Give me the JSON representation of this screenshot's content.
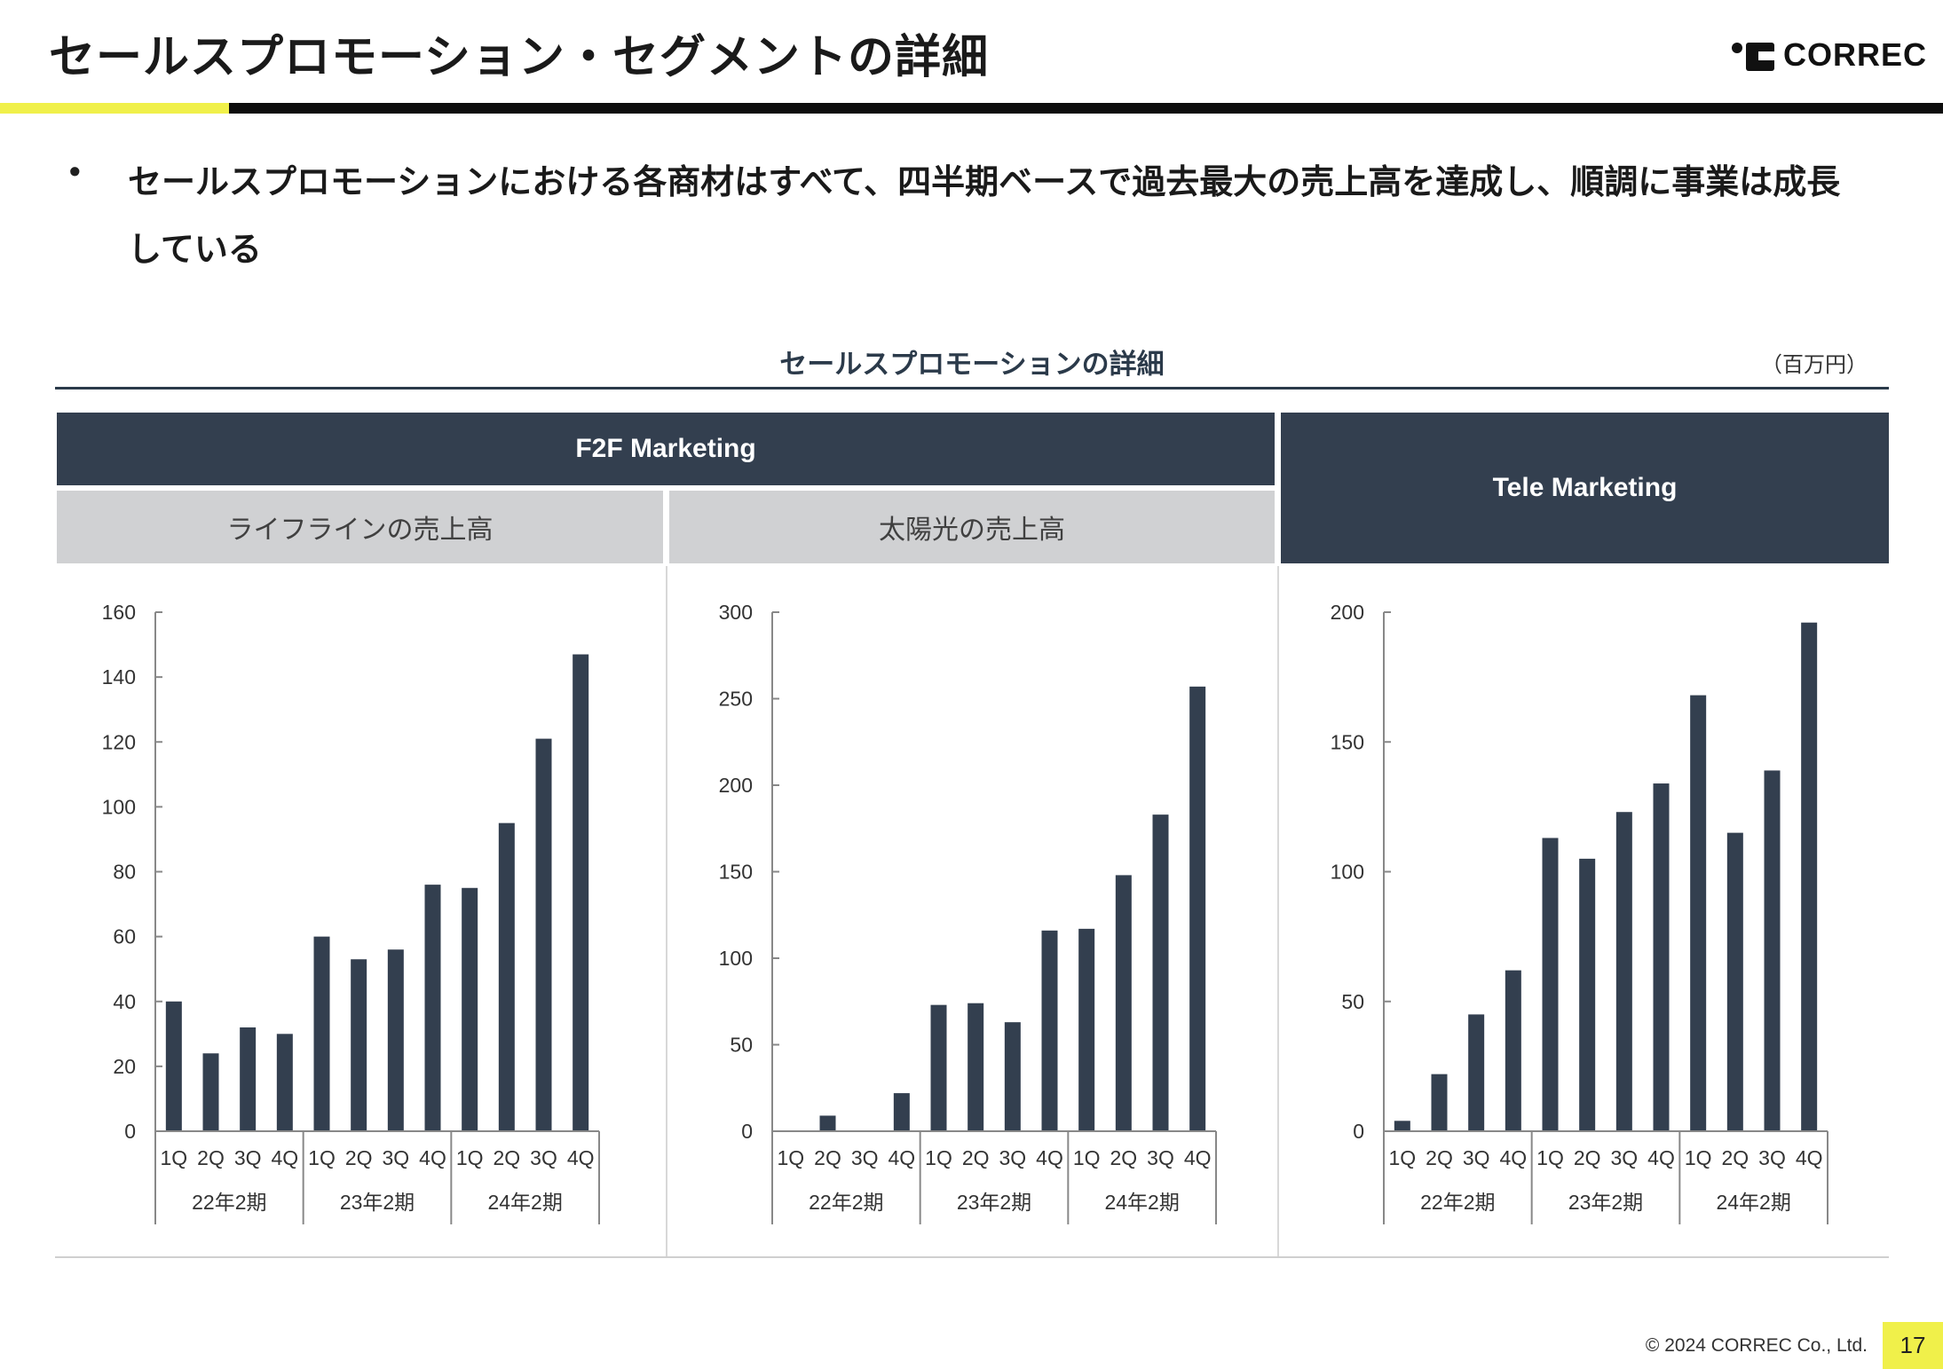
{
  "header": {
    "title": "セールスプロモーション・セグメントの詳細",
    "logo_text": "CORREC"
  },
  "bullet": {
    "marker": "•",
    "text": "セールスプロモーションにおける各商材はすべて、四半期ベースで過去最大の売上高を達成し、順調に事業は成長している"
  },
  "section": {
    "title": "セールスプロモーションの詳細",
    "unit": "（百万円）",
    "f2f_label": "F2F Marketing",
    "tele_label": "Tele Marketing",
    "lifeline_label": "ライフラインの売上高",
    "solar_label": "太陽光の売上高"
  },
  "colors": {
    "bar": "#333f4f",
    "header_dark": "#333f4f",
    "header_light": "#d0d1d3",
    "accent_yellow": "#f0f04a"
  },
  "chart_data": [
    {
      "type": "bar",
      "title": "ライフラインの売上高",
      "quarters": [
        "1Q",
        "2Q",
        "3Q",
        "4Q",
        "1Q",
        "2Q",
        "3Q",
        "4Q",
        "1Q",
        "2Q",
        "3Q",
        "4Q"
      ],
      "periods": [
        "22年2期",
        "23年2期",
        "24年2期"
      ],
      "values": [
        40,
        24,
        32,
        30,
        60,
        53,
        56,
        76,
        75,
        95,
        121,
        147
      ],
      "ylim": [
        0,
        160
      ],
      "yticks": [
        0,
        20,
        40,
        60,
        80,
        100,
        120,
        140,
        160
      ]
    },
    {
      "type": "bar",
      "title": "太陽光の売上高",
      "quarters": [
        "1Q",
        "2Q",
        "3Q",
        "4Q",
        "1Q",
        "2Q",
        "3Q",
        "4Q",
        "1Q",
        "2Q",
        "3Q",
        "4Q"
      ],
      "periods": [
        "22年2期",
        "23年2期",
        "24年2期"
      ],
      "values": [
        0,
        9,
        0,
        22,
        73,
        74,
        63,
        116,
        117,
        148,
        183,
        257
      ],
      "ylim": [
        0,
        300
      ],
      "yticks": [
        0,
        50,
        100,
        150,
        200,
        250,
        300
      ]
    },
    {
      "type": "bar",
      "title": "Tele Marketing",
      "quarters": [
        "1Q",
        "2Q",
        "3Q",
        "4Q",
        "1Q",
        "2Q",
        "3Q",
        "4Q",
        "1Q",
        "2Q",
        "3Q",
        "4Q"
      ],
      "periods": [
        "22年2期",
        "23年2期",
        "24年2期"
      ],
      "values": [
        4,
        22,
        45,
        62,
        113,
        105,
        123,
        134,
        168,
        115,
        139,
        196
      ],
      "ylim": [
        0,
        200
      ],
      "yticks": [
        0,
        50,
        100,
        150,
        200
      ]
    }
  ],
  "footer": {
    "copyright": "© 2024 CORREC Co., Ltd.",
    "page": "17"
  }
}
